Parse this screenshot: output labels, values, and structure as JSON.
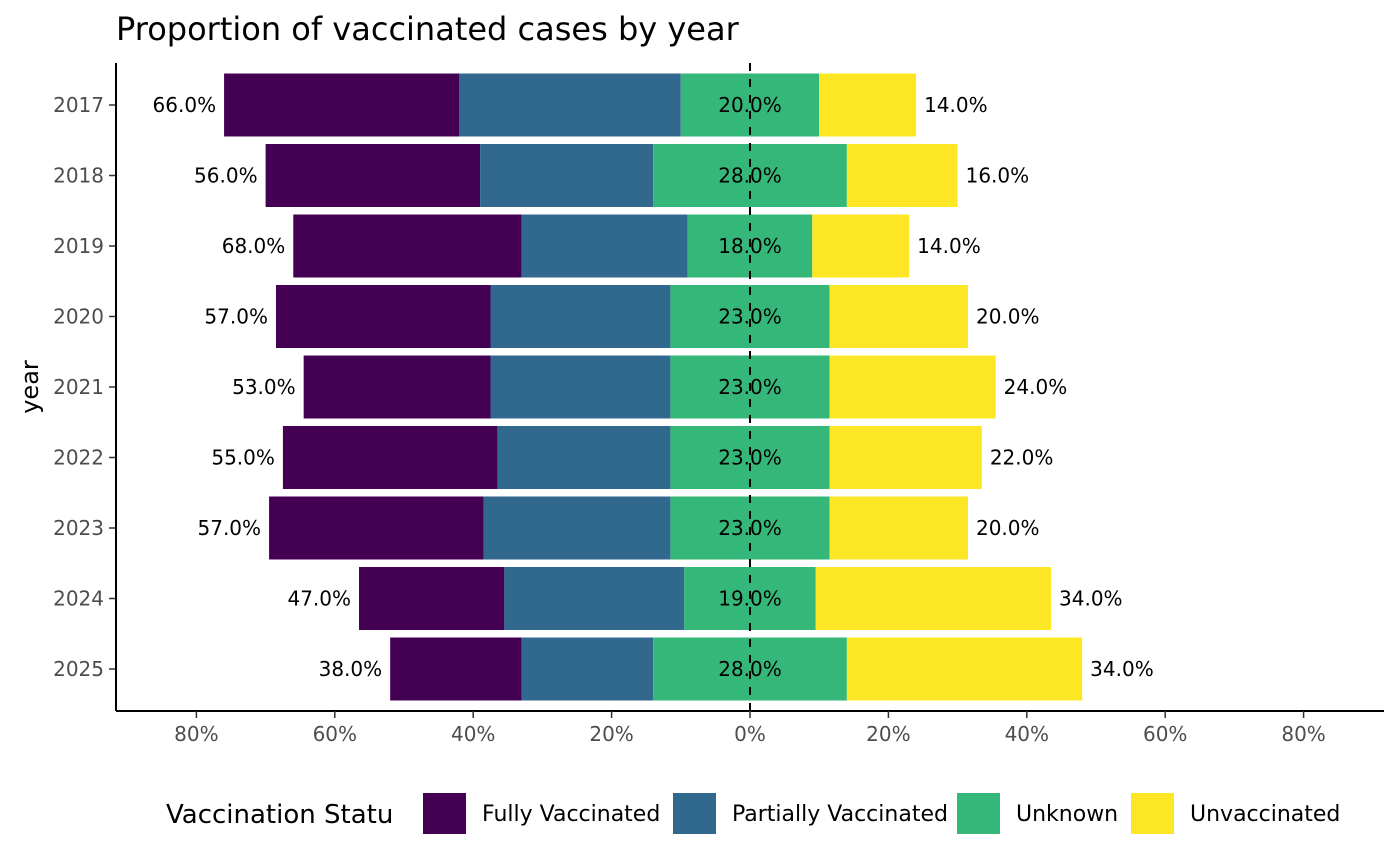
{
  "chart_data": {
    "type": "bar",
    "orientation": "horizontal-diverging",
    "title": "Proportion of vaccinated cases by year",
    "ylabel": "year",
    "xlabel": "",
    "categories": [
      "2017",
      "2018",
      "2019",
      "2020",
      "2021",
      "2022",
      "2023",
      "2024",
      "2025"
    ],
    "x_ticks": [
      "80%",
      "60%",
      "40%",
      "20%",
      "0%",
      "20%",
      "40%",
      "60%",
      "80%"
    ],
    "x_tick_values": [
      -80,
      -60,
      -40,
      -20,
      0,
      20,
      40,
      60,
      80
    ],
    "xlim": [
      -92,
      92
    ],
    "series": [
      {
        "name": "Fully Vaccinated",
        "color": "#440154",
        "values": [
          34,
          31,
          33,
          31,
          27,
          31,
          31,
          21,
          19
        ]
      },
      {
        "name": "Partially Vaccinated",
        "color": "#31688E",
        "values": [
          32,
          25,
          24,
          26,
          26,
          25,
          27,
          26,
          19
        ]
      },
      {
        "name": "Unknown",
        "color": "#35B779",
        "values": [
          20,
          28,
          18,
          23,
          23,
          23,
          23,
          19,
          28
        ]
      },
      {
        "name": "Unvaccinated",
        "color": "#FDE725",
        "values": [
          14,
          16,
          14,
          20,
          24,
          22,
          20,
          34,
          34
        ]
      }
    ],
    "left_labels": [
      "66.0%",
      "56.0%",
      "68.0%",
      "57.0%",
      "53.0%",
      "55.0%",
      "57.0%",
      "47.0%",
      "38.0%"
    ],
    "center_labels": [
      "20.0%",
      "28.0%",
      "18.0%",
      "23.0%",
      "23.0%",
      "23.0%",
      "23.0%",
      "19.0%",
      "28.0%"
    ],
    "right_labels": [
      "14.0%",
      "16.0%",
      "14.0%",
      "20.0%",
      "24.0%",
      "22.0%",
      "20.0%",
      "34.0%",
      "34.0%"
    ],
    "legend": {
      "title": "Vaccination Statu",
      "position": "bottom",
      "entries": [
        "Fully Vaccinated",
        "Partially Vaccinated",
        "Unknown",
        "Unvaccinated"
      ]
    },
    "grid": false
  }
}
